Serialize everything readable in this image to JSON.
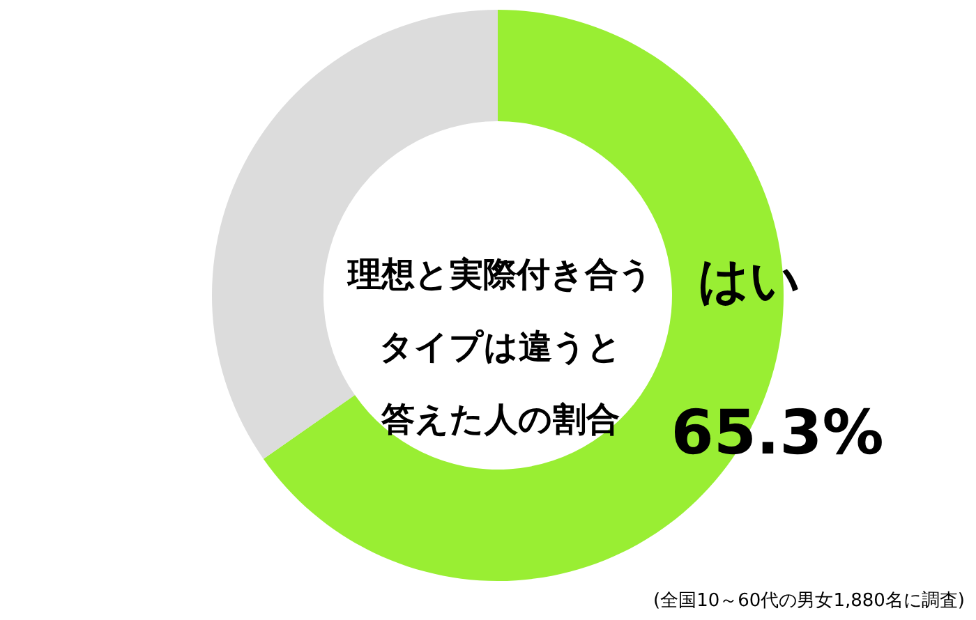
{
  "chart_data": {
    "type": "donut",
    "title": "理想と実際付き合うタイプは違うと答えた人の割合",
    "categories": [
      "はい",
      null
    ],
    "values": [
      65.3,
      34.7
    ],
    "colors": [
      "#99ee33",
      "#dcdcdc"
    ],
    "value_labels": [
      "65.3%",
      null
    ],
    "legend": false,
    "annotations": [
      "(全国10～60代の男女1,880名に調査)"
    ]
  }
}
